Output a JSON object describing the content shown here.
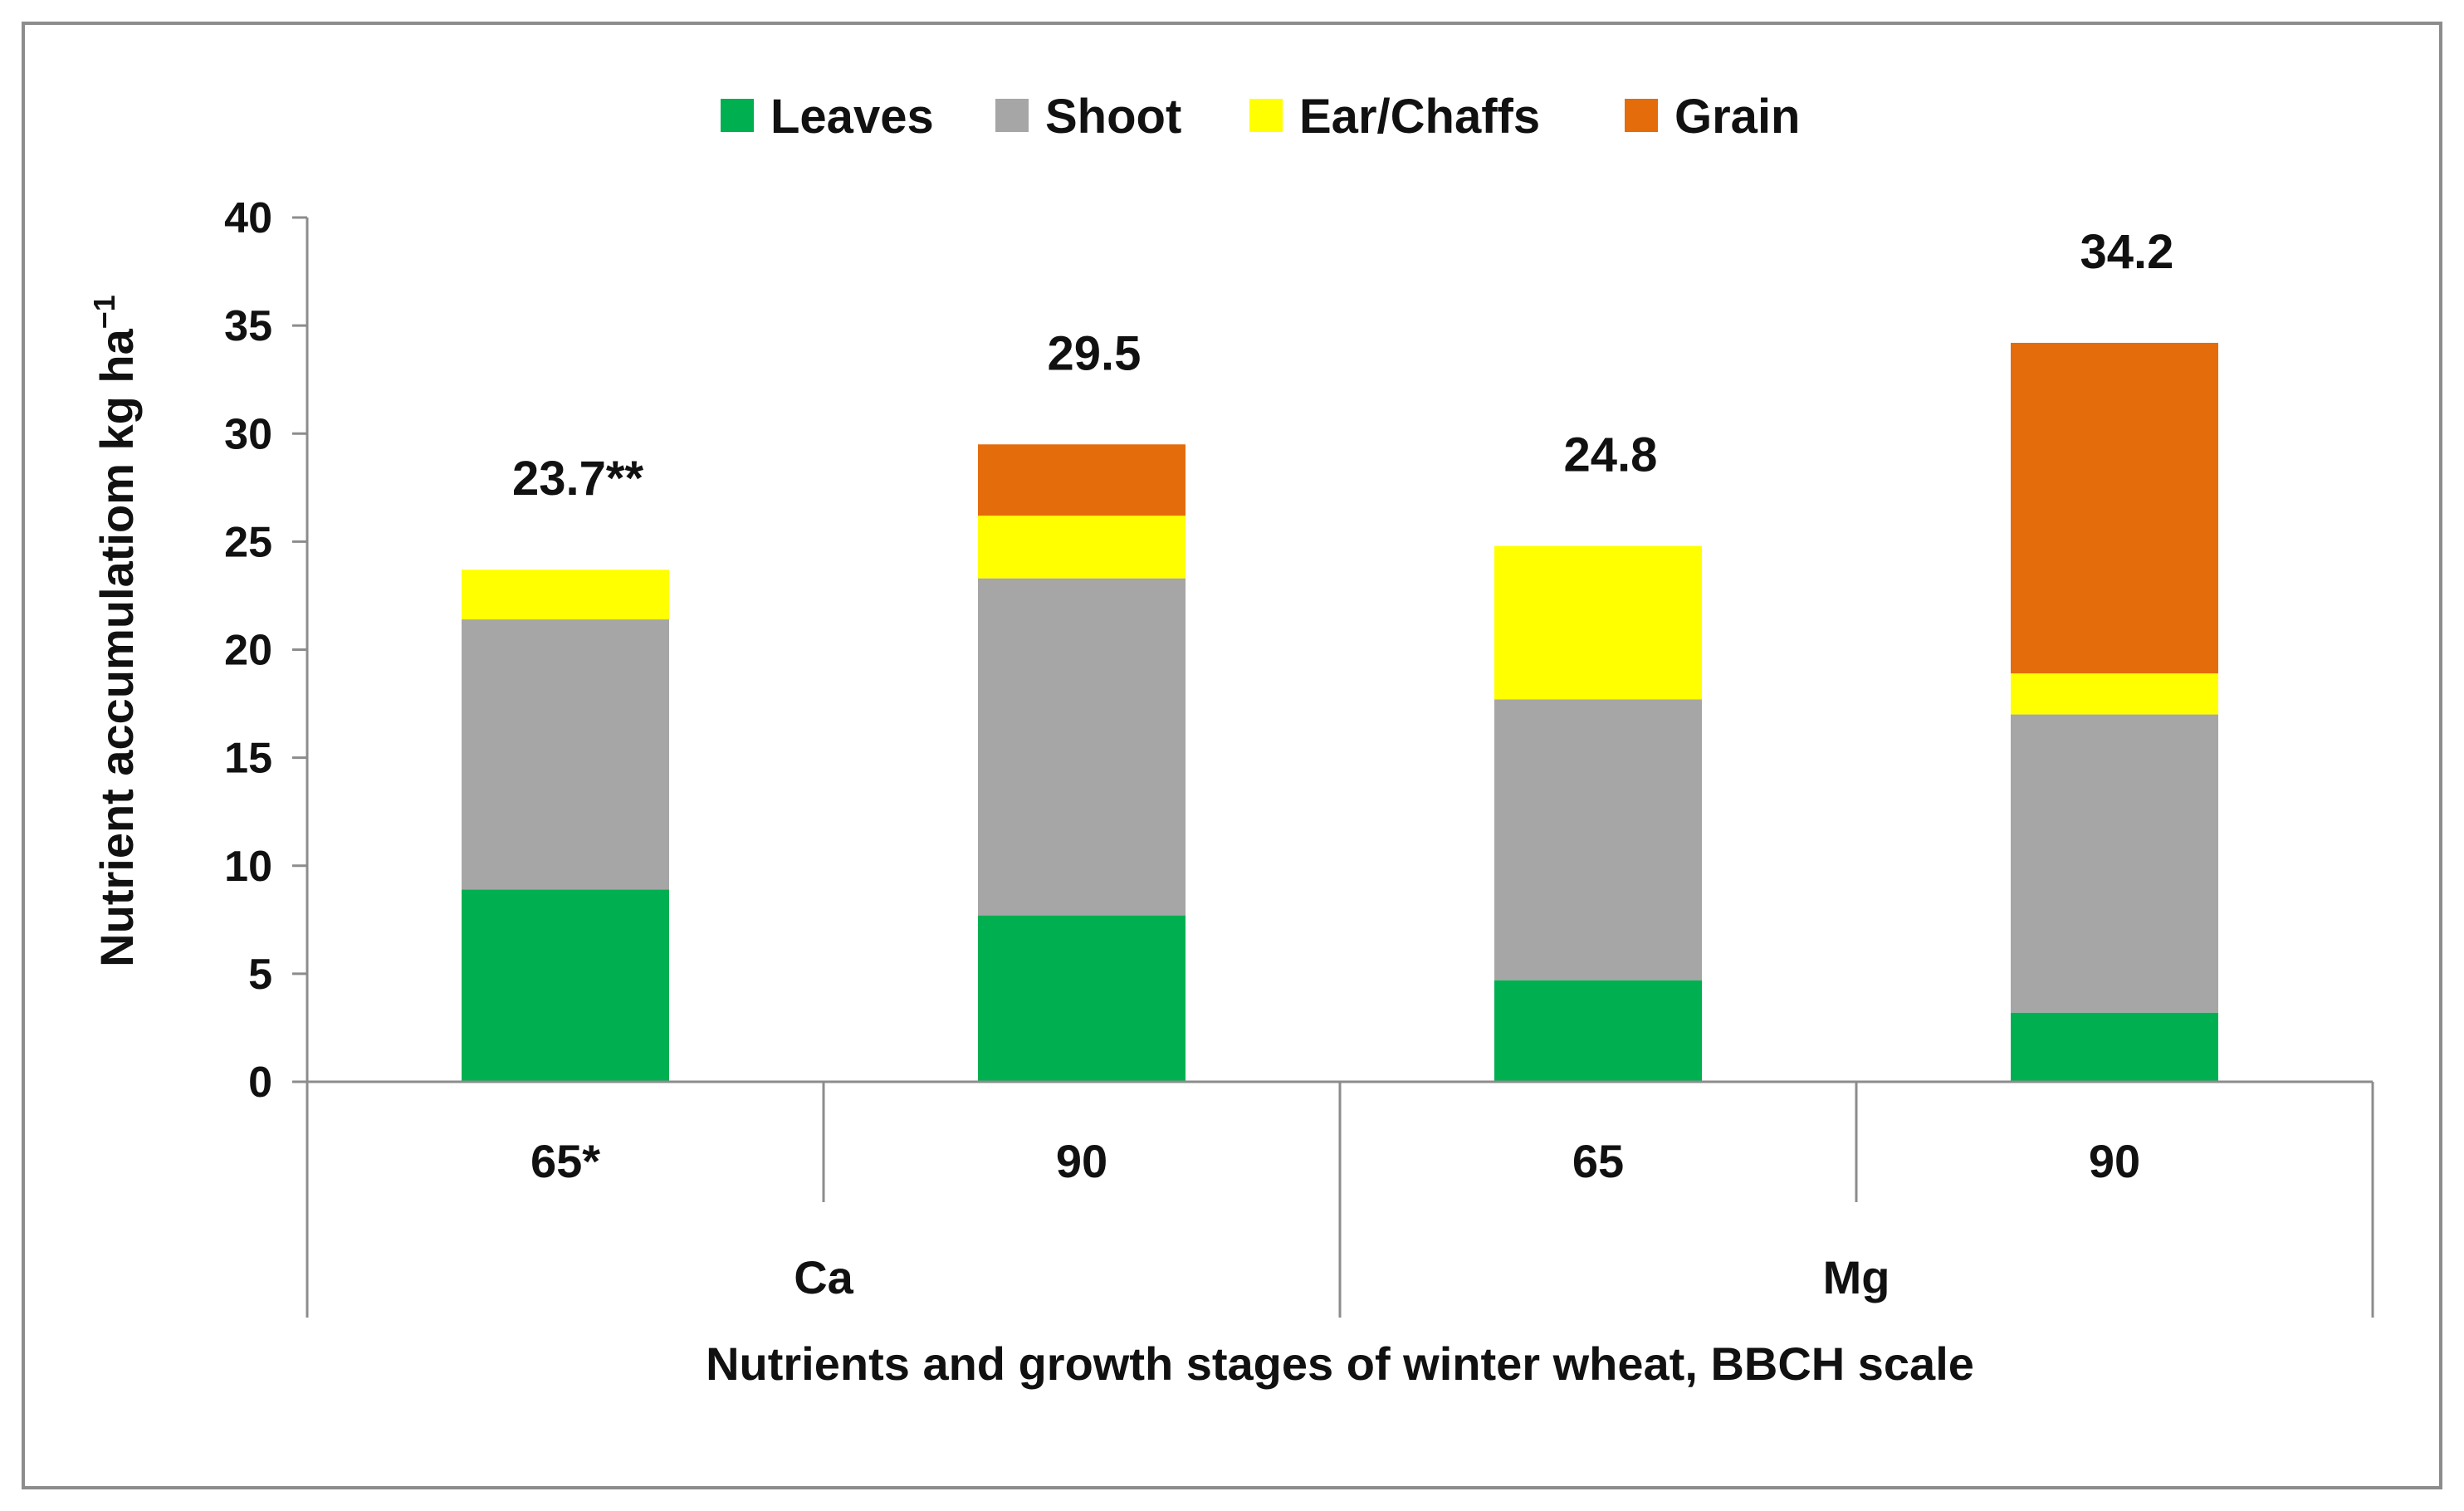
{
  "chart_data": {
    "type": "bar",
    "stacked": true,
    "title": "",
    "xlabel": "Nutrients and growth stages of winter wheat, BBCH scale",
    "ylabel": "Nutrient accumulatiom kg ha",
    "ylabel_exponent": "−1",
    "ylim": [
      0,
      40
    ],
    "yticks": [
      0,
      5,
      10,
      15,
      20,
      25,
      30,
      35,
      40
    ],
    "grid": false,
    "legend_position": "top",
    "categories": [
      "65*",
      "90",
      "65",
      "90"
    ],
    "groups": [
      {
        "label": "Ca",
        "span": [
          0,
          1
        ]
      },
      {
        "label": "Mg",
        "span": [
          2,
          3
        ]
      }
    ],
    "series": [
      {
        "name": "Leaves",
        "color": "#00b050",
        "values": [
          8.9,
          7.7,
          4.7,
          3.2
        ]
      },
      {
        "name": "Shoot",
        "color": "#a6a6a6",
        "values": [
          12.5,
          15.6,
          13.0,
          13.8
        ]
      },
      {
        "name": "Ear/Chaffs",
        "color": "#ffff00",
        "values": [
          2.3,
          2.9,
          7.1,
          1.9
        ]
      },
      {
        "name": "Grain",
        "color": "#e46c0a",
        "values": [
          0,
          3.3,
          0,
          15.3
        ]
      }
    ],
    "totals": [
      "23.7**",
      "29.5",
      "24.8",
      "34.2"
    ]
  }
}
